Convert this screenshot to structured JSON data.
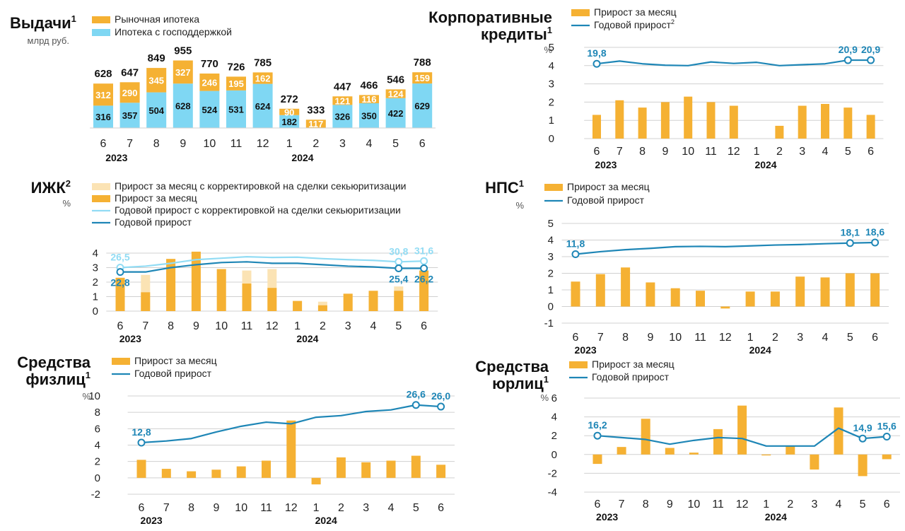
{
  "colors": {
    "orange": "#f5b133",
    "blue": "#7fd7f3",
    "lightorange": "#fbe3b4",
    "lightblue": "#92dcf4",
    "line": "#1e86b6",
    "grid": "#d0d0d0"
  },
  "years": {
    "y2023": "2023",
    "y2024": "2024"
  },
  "chart_data": [
    {
      "id": "vydachi",
      "type": "bar",
      "title": "Выдачи",
      "title_sup": "1",
      "unit": "млрд руб.",
      "categories": [
        "6",
        "7",
        "8",
        "9",
        "10",
        "11",
        "12",
        "1",
        "2",
        "3",
        "4",
        "5",
        "6"
      ],
      "series": [
        {
          "name": "Ипотека с господдержкой",
          "values": [
            316,
            357,
            504,
            628,
            524,
            531,
            624,
            182,
            null,
            326,
            350,
            422,
            629
          ],
          "labels": [
            "316",
            "357",
            "504",
            "628",
            "524",
            "531",
            "624",
            "182",
            "",
            "326",
            "350",
            "422",
            "629"
          ]
        },
        {
          "name": "Рыночная ипотека",
          "values": [
            312,
            290,
            345,
            327,
            246,
            195,
            162,
            90,
            117,
            121,
            116,
            124,
            159
          ],
          "labels": [
            "312",
            "290",
            "345",
            "327",
            "246",
            "195",
            "162",
            "90",
            "117",
            "121",
            "116",
            "124",
            "159"
          ]
        }
      ],
      "totals": [
        628,
        647,
        849,
        955,
        770,
        726,
        785,
        272,
        333,
        447,
        466,
        546,
        788
      ],
      "totals_labels": [
        "628",
        "647",
        "849",
        "955",
        "770",
        "726",
        "785",
        "272",
        "333",
        "447",
        "466",
        "546",
        "788"
      ]
    },
    {
      "id": "korp",
      "type": "bar+line",
      "title_lines": [
        "Корпоративные",
        "кредиты"
      ],
      "title_sup": "1",
      "unit": "%",
      "categories": [
        "6",
        "7",
        "8",
        "9",
        "10",
        "11",
        "12",
        "1",
        "2",
        "3",
        "4",
        "5",
        "6"
      ],
      "ylim": [
        0,
        5
      ],
      "yticks": [
        "0",
        "1",
        "2",
        "3",
        "4",
        "5"
      ],
      "series": [
        {
          "name": "Прирост за месяц",
          "type": "bar",
          "values": [
            1.3,
            2.1,
            1.7,
            2.0,
            2.3,
            2.0,
            1.8,
            0,
            0.7,
            1.8,
            1.9,
            1.7,
            1.3
          ]
        },
        {
          "name": "Годовой прирост",
          "name_sup": "2",
          "type": "line",
          "values": [
            4.1,
            4.25,
            4.1,
            4.02,
            4.0,
            4.2,
            4.12,
            4.18,
            4.0,
            4.05,
            4.1,
            4.3,
            4.3
          ]
        }
      ],
      "annotations": [
        {
          "i": 0,
          "text": "19,8"
        },
        {
          "i": 11,
          "text": "20,9"
        },
        {
          "i": 12,
          "text": "20,9"
        }
      ]
    },
    {
      "id": "izhk",
      "type": "bar+line",
      "title": "ИЖК",
      "title_sup": "2",
      "unit": "%",
      "categories": [
        "6",
        "7",
        "8",
        "9",
        "10",
        "11",
        "12",
        "1",
        "2",
        "3",
        "4",
        "5",
        "6"
      ],
      "ylim": [
        0,
        4
      ],
      "yticks": [
        "0",
        "1",
        "2",
        "3",
        "4"
      ],
      "series": [
        {
          "name": "Прирост за месяц с корректировкой на сделки секьюритизации",
          "type": "bar",
          "values": [
            2.3,
            2.5,
            3.6,
            4.1,
            2.9,
            2.8,
            2.9,
            0.7,
            0.65,
            1.2,
            1.4,
            1.7,
            2.8
          ]
        },
        {
          "name": "Прирост за месяц",
          "type": "bar",
          "values": [
            2.3,
            1.3,
            3.6,
            4.1,
            2.9,
            1.9,
            1.6,
            0.7,
            0.4,
            1.2,
            1.4,
            1.4,
            2.8
          ]
        },
        {
          "name": "Годовой прирост с корректировкой на сделки секьюритизации",
          "type": "line",
          "values": [
            3.0,
            3.1,
            3.3,
            3.55,
            3.65,
            3.75,
            3.7,
            3.72,
            3.62,
            3.55,
            3.5,
            3.4,
            3.45
          ]
        },
        {
          "name": "Годовой прирост",
          "type": "line",
          "values": [
            2.7,
            2.7,
            3.0,
            3.2,
            3.35,
            3.4,
            3.3,
            3.3,
            3.2,
            3.1,
            3.05,
            2.95,
            2.95
          ]
        }
      ],
      "annotations": [
        {
          "i": 0,
          "text": "26,5",
          "series": 2
        },
        {
          "i": 0,
          "text": "22,8",
          "series": 3
        },
        {
          "i": 11,
          "text": "30,8",
          "series": 2
        },
        {
          "i": 12,
          "text": "31,6",
          "series": 2
        },
        {
          "i": 11,
          "text": "25,4",
          "series": 3
        },
        {
          "i": 12,
          "text": "26,2",
          "series": 3
        }
      ]
    },
    {
      "id": "nps",
      "type": "bar+line",
      "title": "НПС",
      "title_sup": "1",
      "unit": "%",
      "categories": [
        "6",
        "7",
        "8",
        "9",
        "10",
        "11",
        "12",
        "1",
        "2",
        "3",
        "4",
        "5",
        "6"
      ],
      "ylim": [
        -1,
        5
      ],
      "yticks": [
        "-1",
        "0",
        "1",
        "2",
        "3",
        "4",
        "5"
      ],
      "series": [
        {
          "name": "Прирост за месяц",
          "type": "bar",
          "values": [
            1.5,
            1.95,
            2.35,
            1.45,
            1.1,
            0.95,
            -0.12,
            0.9,
            0.9,
            1.8,
            1.75,
            2.0,
            2.0
          ]
        },
        {
          "name": "Годовой прирост",
          "type": "line",
          "values": [
            3.15,
            3.3,
            3.42,
            3.5,
            3.6,
            3.62,
            3.6,
            3.65,
            3.7,
            3.73,
            3.78,
            3.82,
            3.85
          ]
        }
      ],
      "annotations": [
        {
          "i": 0,
          "text": "11,8"
        },
        {
          "i": 11,
          "text": "18,1"
        },
        {
          "i": 12,
          "text": "18,6"
        }
      ]
    },
    {
      "id": "fiz",
      "type": "bar+line",
      "title_lines": [
        "Средства",
        "физлиц"
      ],
      "title_sup": "1",
      "unit": "%",
      "categories": [
        "6",
        "7",
        "8",
        "9",
        "10",
        "11",
        "12",
        "1",
        "2",
        "3",
        "4",
        "5",
        "6"
      ],
      "ylim": [
        -2,
        10
      ],
      "yticks": [
        "-2",
        "0",
        "2",
        "4",
        "6",
        "8",
        "10"
      ],
      "series": [
        {
          "name": "Прирост за месяц",
          "type": "bar",
          "values": [
            2.2,
            1.1,
            0.8,
            1.0,
            1.4,
            2.1,
            7.0,
            -0.8,
            2.5,
            1.9,
            2.1,
            2.7,
            1.6
          ]
        },
        {
          "name": "Годовой прирост",
          "type": "line",
          "values": [
            4.3,
            4.5,
            4.8,
            5.6,
            6.3,
            6.8,
            6.6,
            7.4,
            7.6,
            8.1,
            8.3,
            8.9,
            8.7
          ]
        }
      ],
      "annotations": [
        {
          "i": 0,
          "text": "12,8"
        },
        {
          "i": 11,
          "text": "26,6"
        },
        {
          "i": 12,
          "text": "26,0"
        }
      ]
    },
    {
      "id": "yur",
      "type": "bar+line",
      "title_lines": [
        "Средства",
        "юрлиц"
      ],
      "title_sup": "1",
      "unit": "%",
      "categories": [
        "6",
        "7",
        "8",
        "9",
        "10",
        "11",
        "12",
        "1",
        "2",
        "3",
        "4",
        "5",
        "6"
      ],
      "ylim": [
        -4,
        6
      ],
      "yticks": [
        "-4",
        "-2",
        "0",
        "2",
        "4",
        "6"
      ],
      "series": [
        {
          "name": "Прирост за месяц",
          "type": "bar",
          "values": [
            -1.0,
            0.8,
            3.8,
            0.7,
            0.2,
            2.7,
            5.2,
            -0.1,
            0.9,
            -1.6,
            5.0,
            -2.3,
            -0.5
          ]
        },
        {
          "name": "Годовой прирост",
          "type": "line",
          "values": [
            2.0,
            1.8,
            1.6,
            1.1,
            1.5,
            1.8,
            1.7,
            0.9,
            0.9,
            0.9,
            2.8,
            1.7,
            1.9
          ]
        }
      ],
      "annotations": [
        {
          "i": 0,
          "text": "16,2"
        },
        {
          "i": 11,
          "text": "14,9"
        },
        {
          "i": 12,
          "text": "15,6"
        }
      ]
    }
  ]
}
